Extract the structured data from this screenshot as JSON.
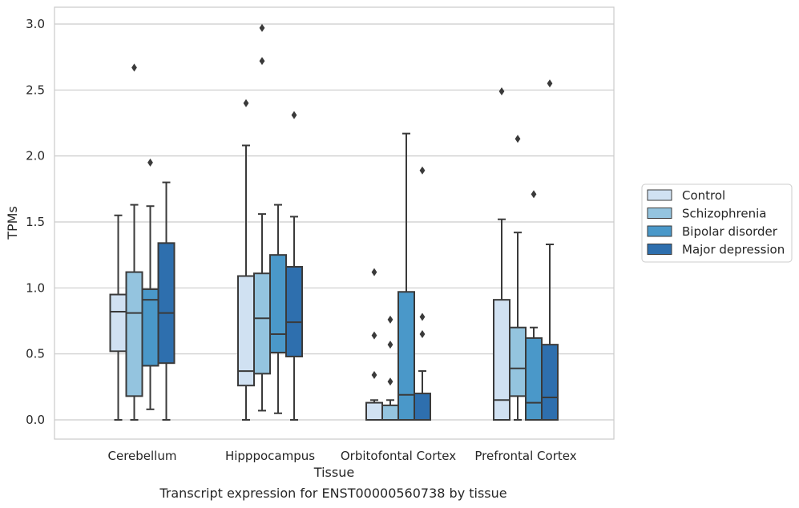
{
  "caption": "Transcript expression for ENST00000560738 by tissue",
  "chart_data": {
    "type": "box",
    "xlabel": "Tissue",
    "ylabel": "TPMs",
    "ylim": [
      -0.15,
      3.12
    ],
    "yticks": [
      0.0,
      0.5,
      1.0,
      1.5,
      2.0,
      2.5,
      3.0
    ],
    "ytick_labels": [
      "0.0",
      "0.5",
      "1.0",
      "1.5",
      "2.0",
      "2.5",
      "3.0"
    ],
    "grid": "horizontal",
    "legend_position": "right",
    "categories": [
      "Cerebellum",
      "Hipppocampus",
      "Orbitofontal Cortex",
      "Prefrontal Cortex"
    ],
    "series": [
      {
        "name": "Control",
        "color": "#d0e1f2",
        "boxes": [
          {
            "whisker_low": 0.0,
            "q1": 0.52,
            "median": 0.82,
            "q3": 0.95,
            "whisker_high": 1.55,
            "outliers": []
          },
          {
            "whisker_low": 0.0,
            "q1": 0.26,
            "median": 0.37,
            "q3": 1.09,
            "whisker_high": 2.08,
            "outliers": [
              2.4
            ]
          },
          {
            "whisker_low": 0.0,
            "q1": 0.0,
            "median": 0.0,
            "q3": 0.13,
            "whisker_high": 0.15,
            "outliers": [
              0.34,
              0.64,
              1.12
            ]
          },
          {
            "whisker_low": 0.0,
            "q1": 0.0,
            "median": 0.15,
            "q3": 0.91,
            "whisker_high": 1.52,
            "outliers": [
              2.49
            ]
          }
        ]
      },
      {
        "name": "Schizophrenia",
        "color": "#94c4df",
        "boxes": [
          {
            "whisker_low": 0.0,
            "q1": 0.18,
            "median": 0.81,
            "q3": 1.12,
            "whisker_high": 1.63,
            "outliers": [
              2.67
            ]
          },
          {
            "whisker_low": 0.07,
            "q1": 0.35,
            "median": 0.77,
            "q3": 1.11,
            "whisker_high": 1.56,
            "outliers": [
              2.72,
              2.97
            ]
          },
          {
            "whisker_low": 0.0,
            "q1": 0.0,
            "median": 0.0,
            "q3": 0.11,
            "whisker_high": 0.15,
            "outliers": [
              0.29,
              0.57,
              0.76
            ]
          },
          {
            "whisker_low": 0.0,
            "q1": 0.18,
            "median": 0.39,
            "q3": 0.7,
            "whisker_high": 1.42,
            "outliers": [
              2.13
            ]
          }
        ]
      },
      {
        "name": "Bipolar disorder",
        "color": "#4a98c9",
        "boxes": [
          {
            "whisker_low": 0.08,
            "q1": 0.41,
            "median": 0.91,
            "q3": 0.99,
            "whisker_high": 1.62,
            "outliers": [
              1.95
            ]
          },
          {
            "whisker_low": 0.05,
            "q1": 0.51,
            "median": 0.65,
            "q3": 1.25,
            "whisker_high": 1.63,
            "outliers": []
          },
          {
            "whisker_low": 0.0,
            "q1": 0.0,
            "median": 0.19,
            "q3": 0.97,
            "whisker_high": 2.17,
            "outliers": []
          },
          {
            "whisker_low": 0.0,
            "q1": 0.0,
            "median": 0.13,
            "q3": 0.62,
            "whisker_high": 0.7,
            "outliers": [
              1.71
            ]
          }
        ]
      },
      {
        "name": "Major depression",
        "color": "#2e6fae",
        "boxes": [
          {
            "whisker_low": 0.0,
            "q1": 0.43,
            "median": 0.81,
            "q3": 1.34,
            "whisker_high": 1.8,
            "outliers": []
          },
          {
            "whisker_low": 0.0,
            "q1": 0.48,
            "median": 0.74,
            "q3": 1.16,
            "whisker_high": 1.54,
            "outliers": [
              2.31
            ]
          },
          {
            "whisker_low": 0.0,
            "q1": 0.0,
            "median": 0.0,
            "q3": 0.2,
            "whisker_high": 0.37,
            "outliers": [
              0.65,
              0.78,
              1.89
            ]
          },
          {
            "whisker_low": 0.0,
            "q1": 0.0,
            "median": 0.17,
            "q3": 0.57,
            "whisker_high": 1.33,
            "outliers": [
              2.55
            ]
          }
        ]
      }
    ]
  }
}
